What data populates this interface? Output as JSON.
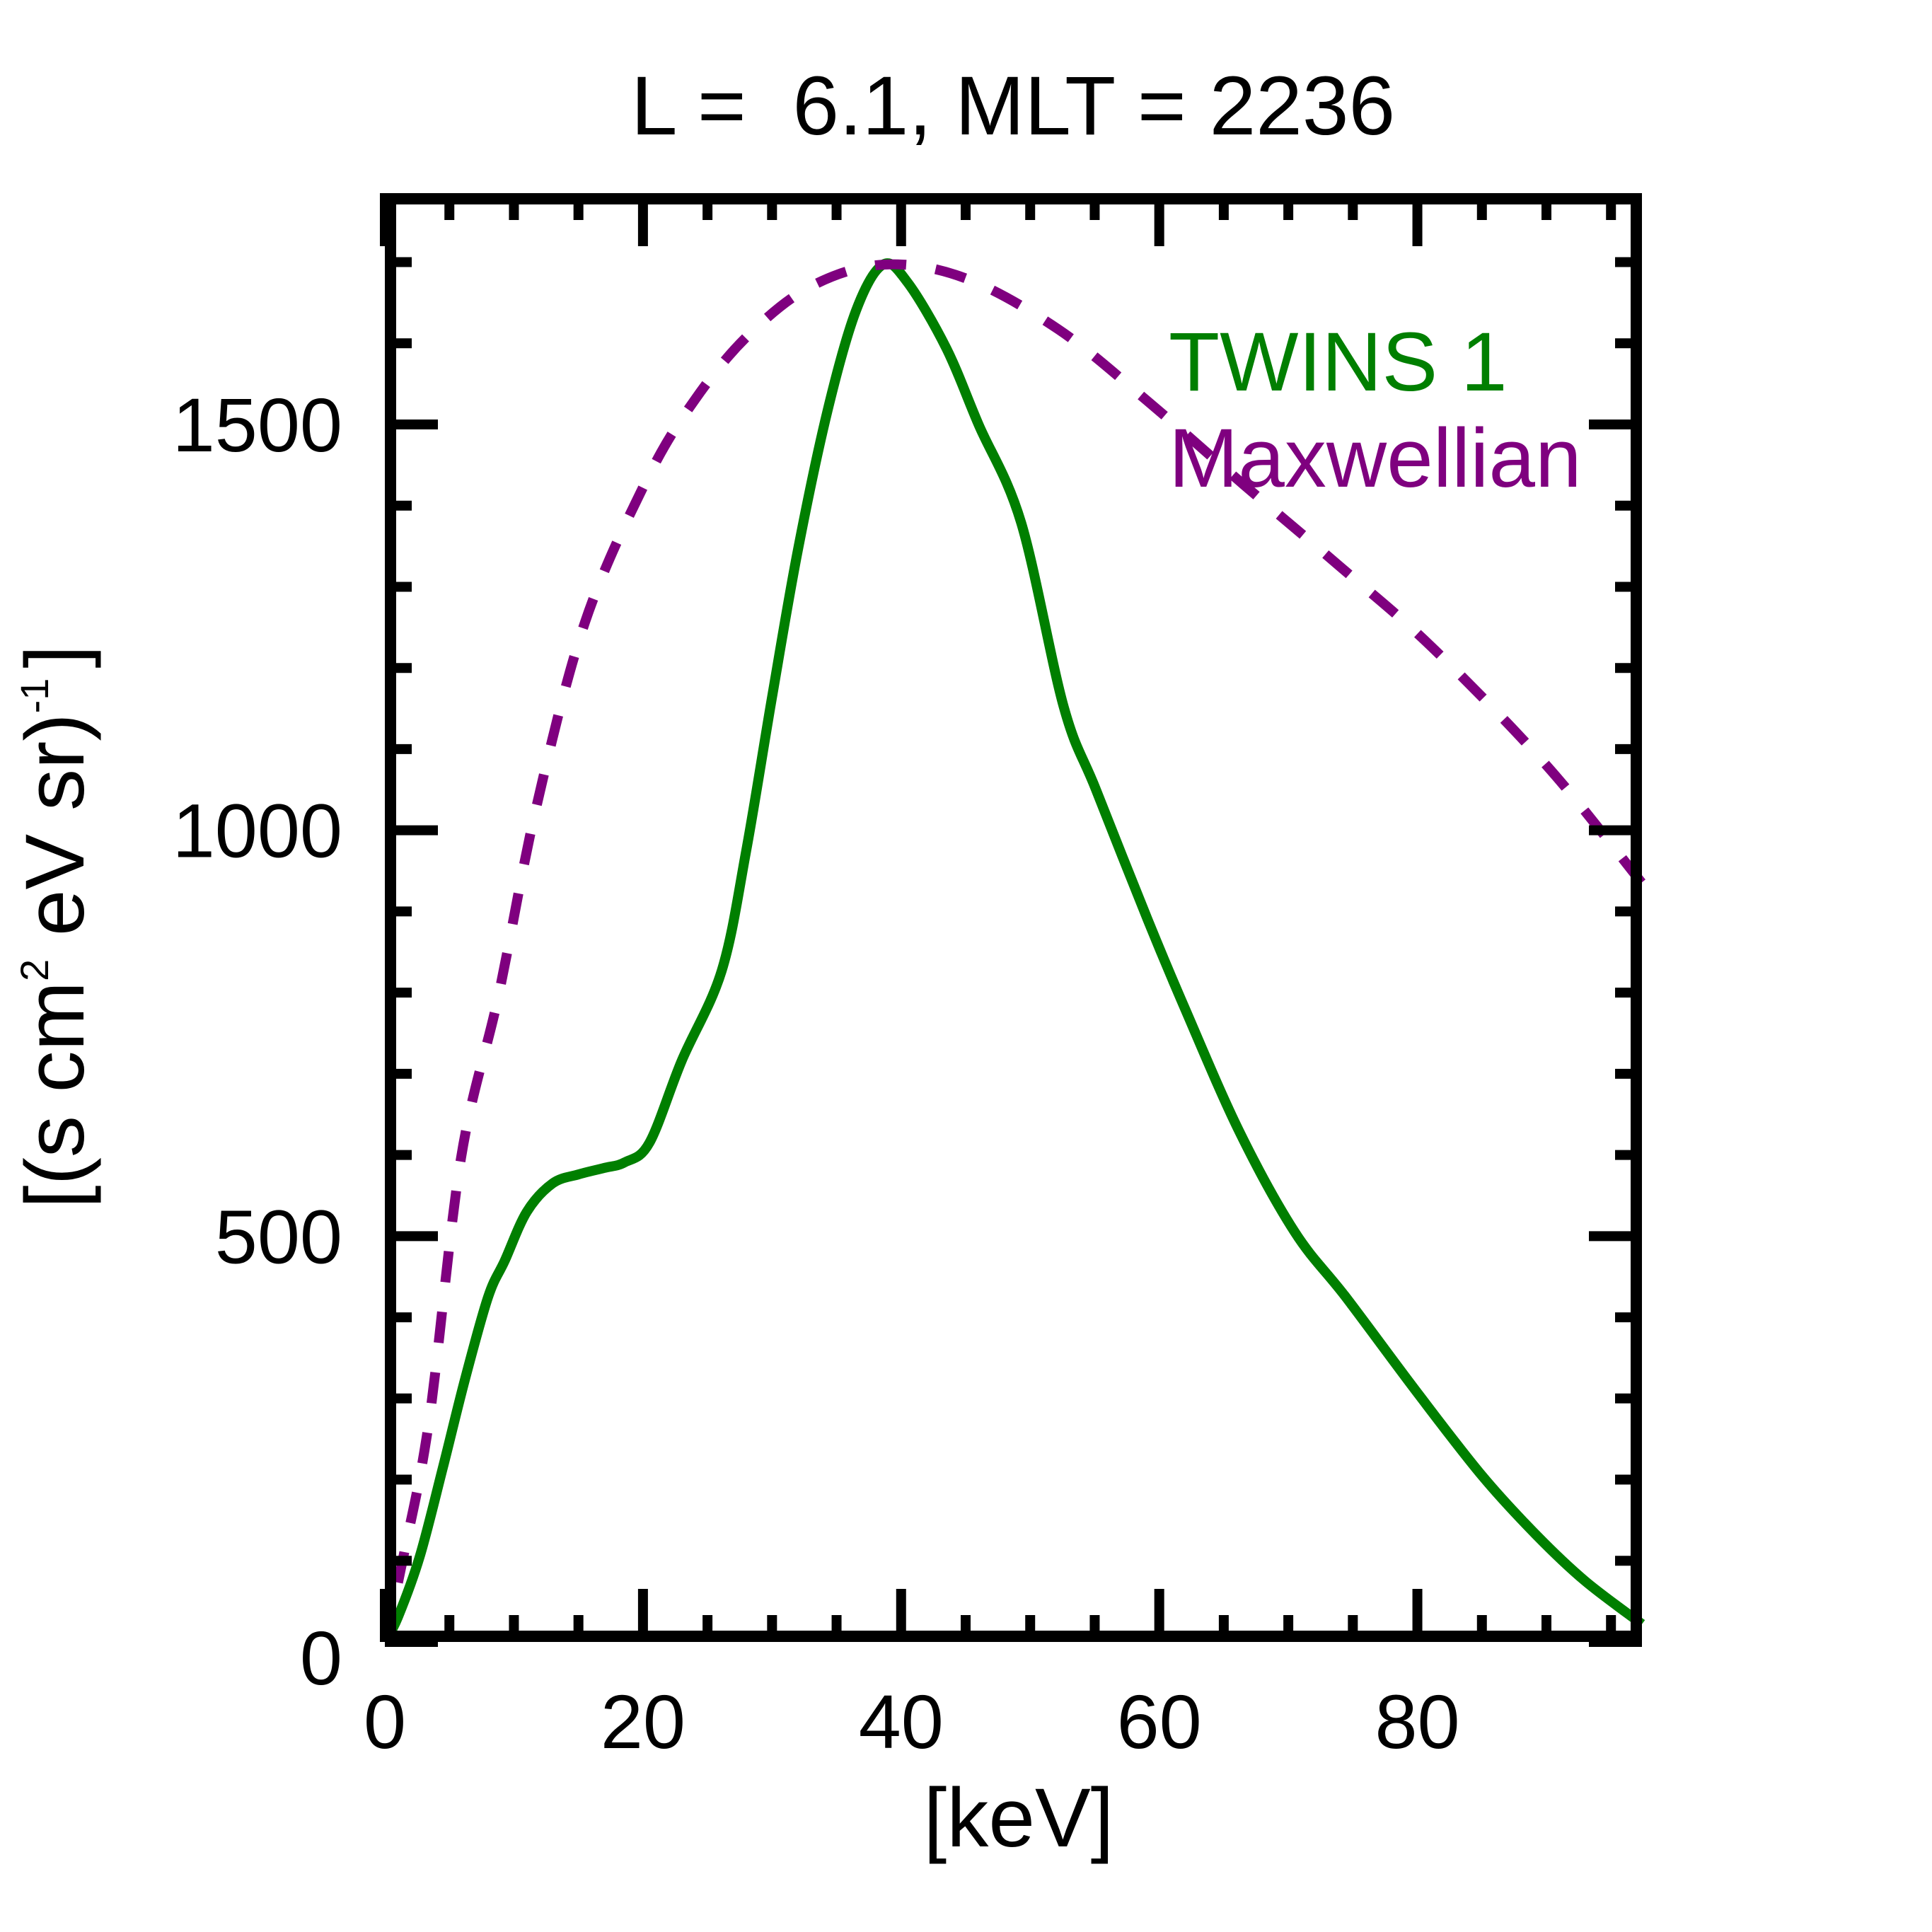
{
  "chart_data": {
    "type": "line",
    "title": "L =  6.1, MLT = 2236",
    "xlabel": "[keV]",
    "ylabel": {
      "prefix": "[(s cm",
      "sup1": "2",
      "middle": " eV sr)",
      "sup2": "-1",
      "suffix": "]"
    },
    "xlim": [
      0,
      97.4
    ],
    "ylim": [
      0,
      1785
    ],
    "x_major_ticks": [
      0,
      20,
      40,
      60,
      80
    ],
    "x_minor_step": 5,
    "y_major_ticks": [
      0,
      500,
      1000,
      1500
    ],
    "y_minor_step": 100,
    "grid": false,
    "legend_position": "top-right",
    "series": [
      {
        "name": "TWINS 1",
        "color": "#007f00",
        "style": "solid",
        "x": [
          0,
          1,
          2.7,
          4.5,
          6.2,
          8,
          9.3,
          11,
          13,
          15,
          17,
          18.6,
          20.5,
          23,
          26.1,
          28,
          30,
          32,
          34.3,
          36.5,
          38.6,
          40.5,
          43.5,
          46,
          49.3,
          52.6,
          55.1,
          59.1,
          62,
          66.2,
          70.5,
          74.5,
          80,
          85,
          89.2,
          93,
          97.4
        ],
        "y": [
          0,
          30,
          105,
          215,
          323,
          425,
          470,
          530,
          565,
          576,
          584,
          591,
          615,
          716,
          827,
          975,
          1164,
          1345,
          1517,
          1640,
          1697,
          1675,
          1594,
          1500,
          1379,
          1152,
          1050,
          890,
          780,
          629,
          505,
          424,
          307,
          205,
          132,
          75,
          22
        ]
      },
      {
        "name": "Maxwellian",
        "color": "#7f007f",
        "style": "dashed",
        "x": [
          0,
          1.5,
          3.45,
          5.9,
          8.8,
          11.7,
          15.5,
          20.3,
          24,
          28.1,
          33,
          38.7,
          45,
          52.2,
          59,
          66.6,
          74,
          81.1,
          90,
          97.4
        ],
        "y": [
          0,
          110,
          275,
          596,
          796,
          1026,
          1256,
          1432,
          1530,
          1609,
          1670,
          1697,
          1680,
          1617,
          1530,
          1425,
          1325,
          1226,
          1080,
          935
        ]
      }
    ]
  }
}
